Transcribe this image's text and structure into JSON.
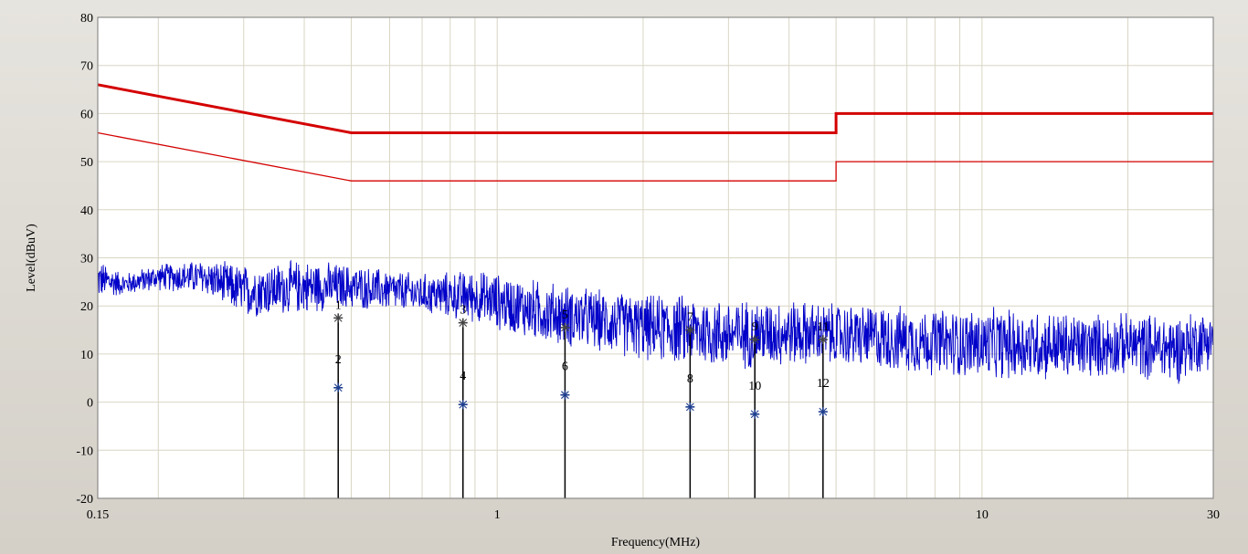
{
  "chart_data": {
    "type": "line",
    "title": "",
    "xlabel": "Frequency(MHz)",
    "ylabel": "Level(dBuV)",
    "xscale": "log",
    "xlim": [
      0.15,
      30
    ],
    "ylim": [
      -20,
      80
    ],
    "grid": true,
    "x_tick_labels": [
      "0.15",
      "1",
      "10",
      "30"
    ],
    "y_tick_labels": [
      "80",
      "70",
      "60",
      "50",
      "40",
      "30",
      "20",
      "10",
      "0",
      "-10",
      "-20"
    ],
    "colors": {
      "limit": "#d40000",
      "trace": "#0000c8",
      "marker": "#000000",
      "marker_symbol": "#1f3f8f",
      "grid": "#d9d6c4",
      "plot_bg": "#ffffff",
      "frame_bg": "#d4d0c8"
    },
    "limit_lines": [
      {
        "style": "thick",
        "points": [
          [
            0.15,
            66
          ],
          [
            0.5,
            56
          ],
          [
            5,
            56
          ],
          [
            5,
            60
          ],
          [
            30,
            60
          ]
        ]
      },
      {
        "style": "thin",
        "points": [
          [
            0.15,
            56
          ],
          [
            0.5,
            46
          ],
          [
            5,
            46
          ],
          [
            5,
            50
          ],
          [
            30,
            50
          ]
        ]
      }
    ],
    "trace_envelope": {
      "description_free": true,
      "points": [
        [
          0.15,
          30,
          21
        ],
        [
          0.17,
          27,
          22
        ],
        [
          0.2,
          29,
          23
        ],
        [
          0.25,
          30,
          22
        ],
        [
          0.3,
          29,
          17
        ],
        [
          0.4,
          30,
          18
        ],
        [
          0.5,
          29,
          19
        ],
        [
          0.7,
          27,
          18
        ],
        [
          0.9,
          28,
          16
        ],
        [
          1.2,
          26,
          12
        ],
        [
          1.6,
          24,
          10
        ],
        [
          2,
          23,
          8
        ],
        [
          2.5,
          23,
          7
        ],
        [
          3,
          22,
          6
        ],
        [
          4,
          22,
          7
        ],
        [
          5,
          21,
          7
        ],
        [
          6,
          21,
          6
        ],
        [
          8,
          20,
          5
        ],
        [
          10,
          20,
          4
        ],
        [
          13,
          20,
          4
        ],
        [
          16,
          19,
          4
        ],
        [
          20,
          19,
          5
        ],
        [
          25,
          19,
          3
        ],
        [
          30,
          20,
          7
        ]
      ]
    },
    "markers": [
      {
        "label": "1",
        "x": 0.47,
        "y": 17.5
      },
      {
        "label": "2",
        "x": 0.47,
        "y": 3
      },
      {
        "label": "3",
        "x": 0.85,
        "y": 16.5
      },
      {
        "label": "4",
        "x": 0.85,
        "y": -0.5
      },
      {
        "label": "5",
        "x": 1.38,
        "y": 15.5
      },
      {
        "label": "6",
        "x": 1.38,
        "y": 1.5
      },
      {
        "label": "7",
        "x": 2.5,
        "y": 15
      },
      {
        "label": "8",
        "x": 2.5,
        "y": -1
      },
      {
        "label": "9",
        "x": 3.4,
        "y": 13
      },
      {
        "label": "10",
        "x": 3.4,
        "y": -2.5
      },
      {
        "label": "11",
        "x": 4.7,
        "y": 13
      },
      {
        "label": "12",
        "x": 4.7,
        "y": -2
      }
    ]
  }
}
